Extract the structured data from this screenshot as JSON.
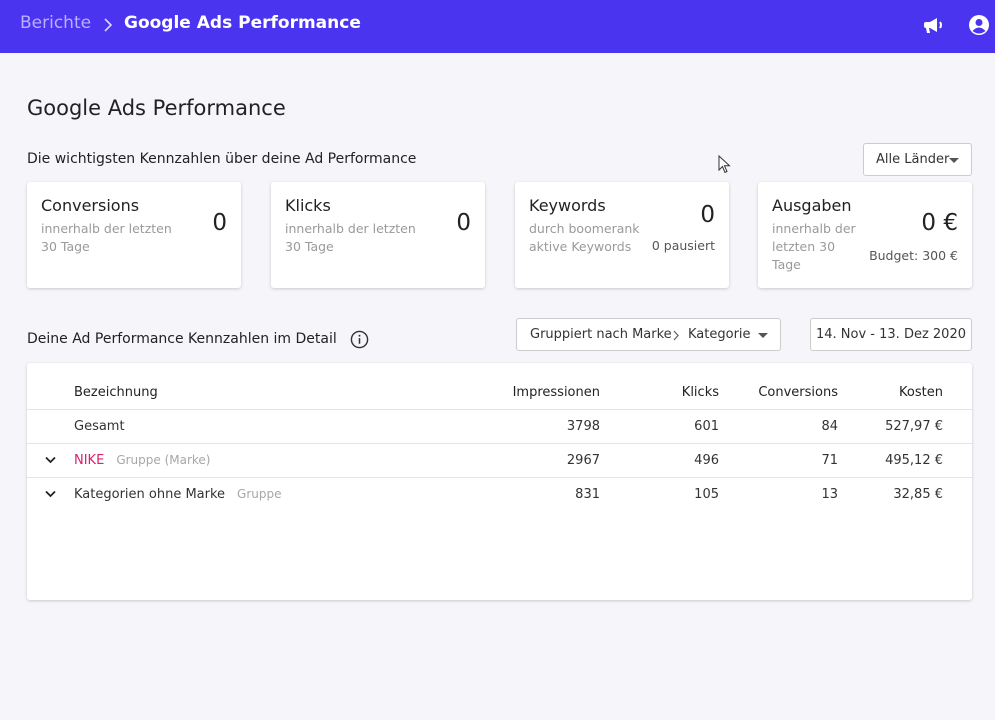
{
  "header": {
    "breadcrumb_root": "Berichte",
    "breadcrumb_current": "Google Ads Performance",
    "icons": [
      "megaphone-icon",
      "account-circle-icon"
    ],
    "bg_color": "#4a34f0"
  },
  "page": {
    "title": "Google Ads Performance",
    "kpi_heading": "Die wichtigsten Kennzahlen über deine Ad Performance",
    "country_filter": "Alle Länder"
  },
  "kpis": [
    {
      "title": "Conversions",
      "sub1": "innerhalb der letzten",
      "sub2": "30 Tage",
      "value": "0"
    },
    {
      "title": "Klicks",
      "sub1": "innerhalb der letzten",
      "sub2": "30 Tage",
      "value": "0"
    },
    {
      "title": "Keywords",
      "sub1": "durch boomerank",
      "sub2": "aktive Keywords",
      "value": "0",
      "extra": "0 pausiert"
    },
    {
      "title": "Ausgaben",
      "sub1": "innerhalb der",
      "sub2": "letzten 30",
      "sub3": "Tage",
      "value": "0 €",
      "extra": "Budget: 300 €"
    }
  ],
  "detail": {
    "heading": "Deine Ad Performance Kennzahlen im Detail",
    "grouping_a": "Gruppiert nach Marke",
    "grouping_b": "Kategorie",
    "date_range": "14. Nov - 13. Dez 2020"
  },
  "table": {
    "columns": [
      "Bezeichnung",
      "Impressionen",
      "Klicks",
      "Conversions",
      "Kosten"
    ],
    "rows": [
      {
        "name": "Gesamt",
        "tag": "",
        "impressions": "3798",
        "clicks": "601",
        "conversions": "84",
        "cost": "527,97 €"
      },
      {
        "name": "NIKE",
        "tag": "Gruppe (Marke)",
        "impressions": "2967",
        "clicks": "496",
        "conversions": "71",
        "cost": "495,12 €"
      },
      {
        "name": "Kategorien ohne Marke",
        "tag": "Gruppe",
        "impressions": "831",
        "clicks": "105",
        "conversions": "13",
        "cost": "32,85 €"
      }
    ],
    "brand_color": "#d6226f"
  }
}
